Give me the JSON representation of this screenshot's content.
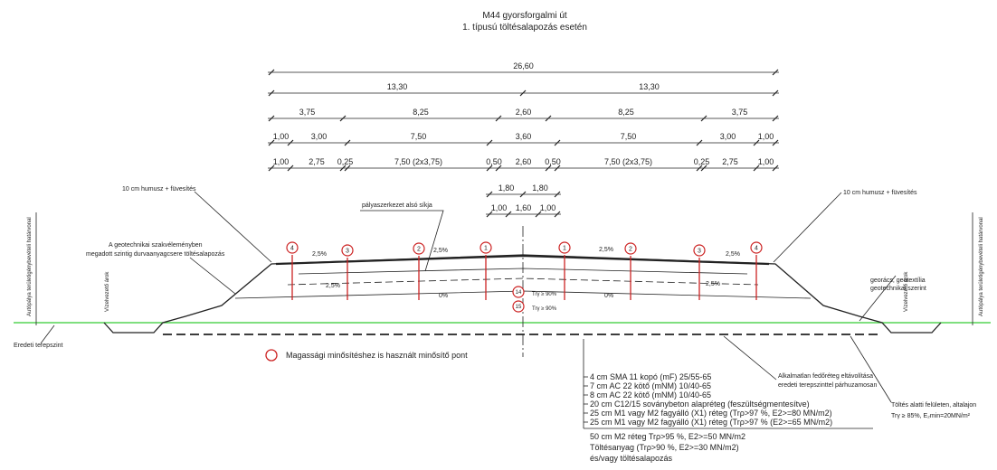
{
  "header": {
    "title": "M44 gyorsforgalmi út",
    "subtitle": "1. típusú töltésalapozás esetén"
  },
  "dimension_rows": [
    [
      "26,60"
    ],
    [
      "13,30",
      "13,30"
    ],
    [
      "3,75",
      "8,25",
      "2,60",
      "8,25",
      "3,75"
    ],
    [
      "1,00",
      "3,00",
      "7,50",
      "3,60",
      "7,50",
      "3,00",
      "1,00"
    ],
    [
      "1,00",
      "2,75",
      "0,25",
      "7,50 (2x3,75)",
      "0,50",
      "2,60",
      "0,50",
      "7,50 (2x3,75)",
      "0,25",
      "2,75",
      "1,00"
    ],
    [
      "1,80",
      "1,80"
    ],
    [
      "1,00",
      "1,60",
      "1,00"
    ]
  ],
  "annotations": {
    "topsoil_left": "10 cm humusz + füvesítés",
    "topsoil_right": "10 cm humusz + füvesítés",
    "pavement_base": "pályaszerkezet alsó síkja",
    "geotech_1": "A geotechnikai szakvéleményben",
    "geotech_2": "megadott szintig durvaanyagcsere töltésalapozás",
    "boundary_left": "Autópálya területigénybevételi határvonal",
    "boundary_right": "Autópálya területigénybevételi határvonal",
    "ditch_left": "Vízelvezető árok",
    "ditch_right": "Vízelvezető árok",
    "ground": "Eredeti terepszint",
    "geogrid_1": "georács, geotextília",
    "geogrid_2": "geotechnikai szerint",
    "removal_1": "Alkalmatlan fedőréteg eltávolítása",
    "removal_2": "eredeti terepszinttel párhuzamosan",
    "subgrade_1": "Töltés alatti felületen, altalajon",
    "subgrade_2": "Trγ ≥ 85%, E₂min=20MN/m²",
    "compaction_1": "Trγ ≥ 90%",
    "compaction_2": "Trγ ≥ 90%"
  },
  "slopes": [
    "2,5%",
    "2,5%",
    "2,5%",
    "2,5%",
    "2,5%",
    "2,5%",
    "0%",
    "0%"
  ],
  "markers": [
    "4",
    "3",
    "2",
    "1",
    "1",
    "2",
    "3",
    "4"
  ],
  "center_markers": [
    "14",
    "15"
  ],
  "legend": "Magassági minősítéshez is használt minősítő pont",
  "layers": [
    "4 cm SMA 11 kopó (mF) 25/55-65",
    "7 cm AC 22 kötő (mNM) 10/40-65",
    "8 cm AC 22 kötő (mNM) 10/40-65",
    "20 cm C12/15 soványbeton alapréteg (feszültségmentesítve)",
    "25 cm M1 vagy M2 fagyálló (X1) réteg (Trρ>97 %, E2>=80 MN/m2)",
    "25 cm M1 vagy M2 fagyálló (X1) réteg (Trρ>97 % (E2>=65 MN/m2)"
  ],
  "lower_layers": [
    "50 cm M2 réteg Trρ>95 %, E2>=50 MN/m2",
    "Töltésanyag (Trρ>90 %, E2>=30 MN/m2)",
    "és/vagy töltésalapozás"
  ]
}
